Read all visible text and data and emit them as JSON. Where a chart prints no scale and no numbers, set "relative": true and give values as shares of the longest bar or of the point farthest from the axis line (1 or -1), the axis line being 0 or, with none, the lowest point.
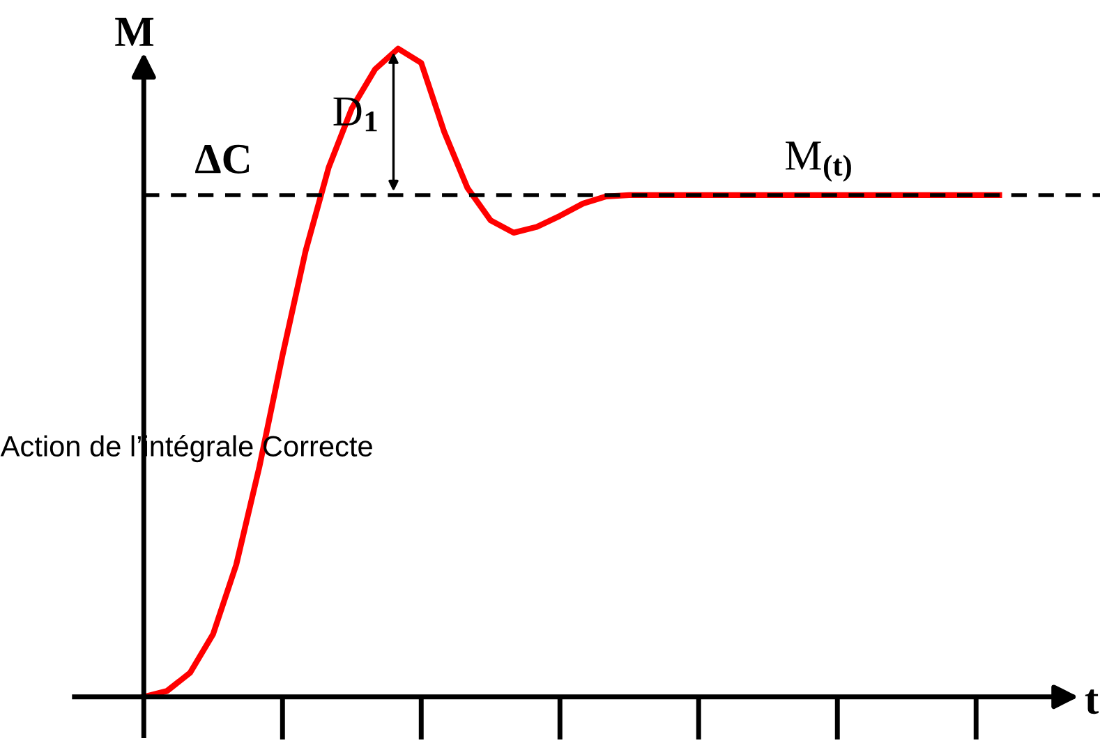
{
  "chart_data": {
    "type": "line",
    "relative": true,
    "xlabel": "t",
    "ylabel": "M",
    "categories": [
      null,
      null,
      null,
      null,
      null,
      null,
      null,
      null,
      null,
      null,
      null,
      null,
      null,
      null,
      null,
      null,
      null,
      null,
      null,
      null,
      null,
      null,
      null,
      null,
      null,
      null,
      null,
      null,
      null,
      null,
      null,
      null,
      null,
      null,
      null,
      null,
      null,
      null
    ],
    "series": [
      {
        "color": "#ff0000",
        "values": [
          0,
          0.009,
          0.037,
          0.097,
          0.204,
          0.355,
          0.527,
          0.688,
          0.817,
          0.908,
          0.968,
          1,
          0.978,
          0.871,
          0.785,
          0.735,
          0.716,
          0.725,
          0.742,
          0.761,
          0.772,
          0.774,
          0.774,
          0.774,
          0.774,
          0.774,
          0.774,
          0.774,
          0.774,
          0.774,
          0.774,
          0.774,
          0.774,
          0.774,
          0.774,
          0.774,
          0.774,
          0.774
        ]
      }
    ],
    "ref_lines": [
      {
        "axis": "y",
        "value": 0.774,
        "label": "ΔC",
        "color": "#000000",
        "line_style": "dashed"
      }
    ],
    "annotations": [
      "D$_{1}$",
      "M$_{(t)}$",
      "Action de l’intégrale Correcte"
    ],
    "grid": false,
    "legend": false,
    "marker": "none",
    "line_style": "solid"
  }
}
